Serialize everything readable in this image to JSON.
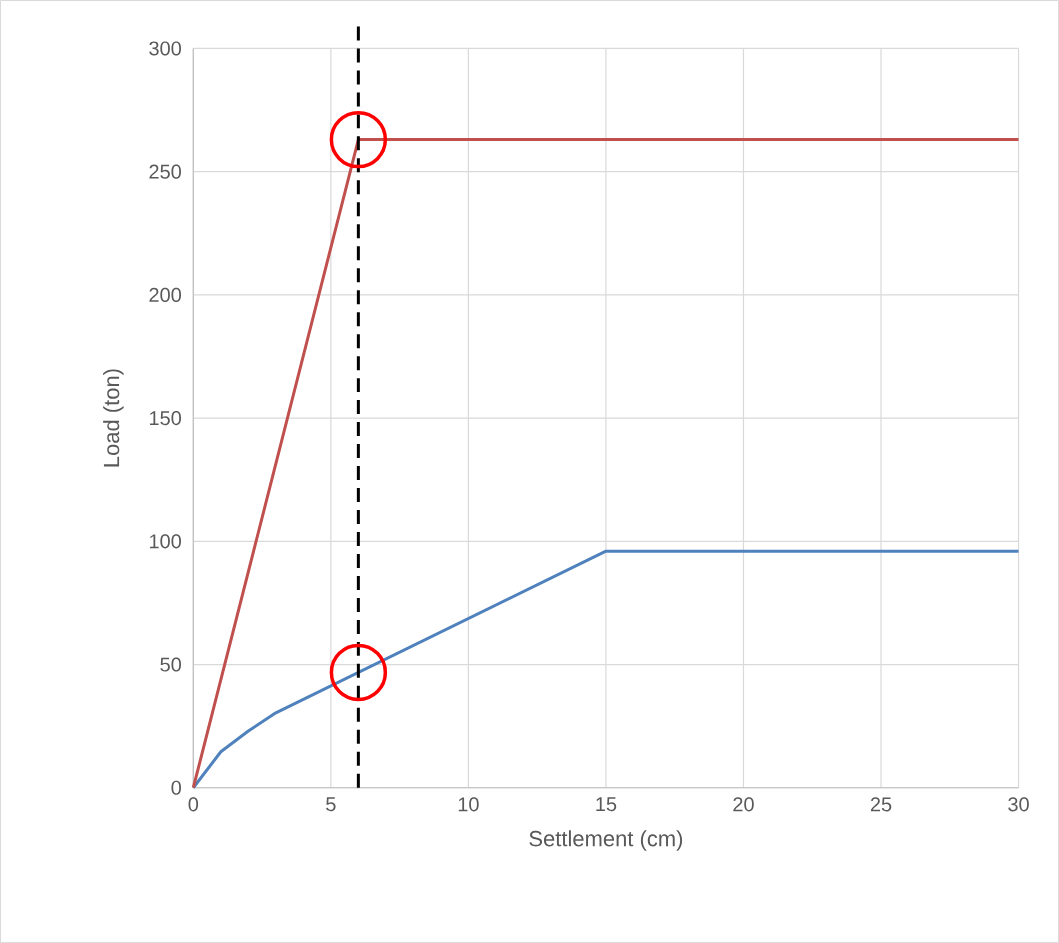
{
  "chart_data": {
    "type": "line",
    "xlabel": "Settlement  (cm)",
    "ylabel": "Load (ton)",
    "series": [
      {
        "color": "#4f81bd",
        "x": [
          0,
          1,
          2,
          3,
          15,
          30
        ],
        "values": [
          0,
          14.6,
          23,
          30.4,
          96,
          96
        ]
      },
      {
        "color": "#c0504d",
        "x": [
          0,
          6,
          30
        ],
        "values": [
          0,
          263,
          263
        ]
      }
    ],
    "xlim": [
      0,
      30
    ],
    "ylim": [
      0,
      300
    ],
    "xticks": [
      0,
      5,
      10,
      15,
      20,
      25,
      30
    ],
    "yticks": [
      0,
      50,
      100,
      150,
      200,
      250,
      300
    ],
    "grid": true,
    "marker": "none",
    "line_style": "solid",
    "ref_lines": [
      {
        "axis": "x",
        "value": 6,
        "color": "#000000",
        "line_style": "dashed"
      }
    ]
  }
}
